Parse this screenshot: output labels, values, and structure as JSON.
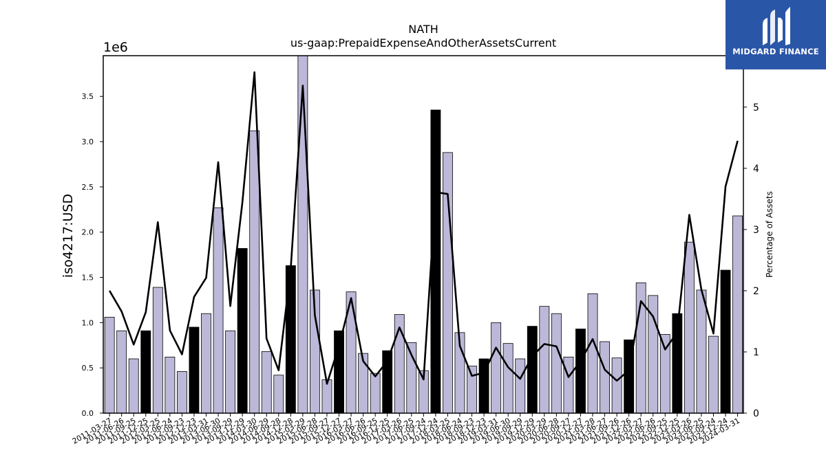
{
  "chart_data": {
    "type": "bar",
    "title": "NATH",
    "subtitle": "us-gaap:PrepaidExpenseAndOtherAssetsCurrent",
    "ylabel": "iso4217:USD",
    "y_offset_label": "1e6",
    "y2label": "Percentage of Assets",
    "ylim": [
      0,
      3.95
    ],
    "y2lim": [
      0,
      5.84
    ],
    "yticks": [
      "0.0",
      "0.5",
      "1.0",
      "1.5",
      "2.0",
      "2.5",
      "3.0",
      "3.5"
    ],
    "y2ticks": [
      "0",
      "1",
      "2",
      "3",
      "4",
      "5"
    ],
    "grid": false,
    "colors": {
      "bar": "#bcb8d8",
      "bar_highlight": "#000000",
      "line": "#000000"
    },
    "categories": [
      "2011-03-27",
      "2011-06-26",
      "2011-09-25",
      "2011-12-25",
      "2012-03-25",
      "2012-06-24",
      "2012-09-23",
      "2012-12-23",
      "2013-03-31",
      "2013-06-30",
      "2013-09-29",
      "2013-12-29",
      "2014-03-30",
      "2014-06-29",
      "2014-09-28",
      "2014-12-28",
      "2015-03-29",
      "2015-06-28",
      "2015-09-27",
      "2015-12-27",
      "2016-03-27",
      "2016-06-26",
      "2016-09-25",
      "2016-12-25",
      "2017-03-26",
      "2017-06-25",
      "2017-09-24",
      "2017-12-24",
      "2018-03-25",
      "2018-06-24",
      "2018-09-23",
      "2018-12-23",
      "2019-03-31",
      "2019-06-30",
      "2019-09-29",
      "2019-12-29",
      "2020-03-29",
      "2020-06-28",
      "2020-09-27",
      "2020-12-27",
      "2021-03-28",
      "2021-06-27",
      "2021-09-26",
      "2021-12-26",
      "2022-03-27",
      "2022-06-26",
      "2022-09-25",
      "2022-12-25",
      "2023-03-26",
      "2023-06-25",
      "2023-09-24",
      "2023-12-24",
      "2024-03-31"
    ],
    "series": [
      {
        "type": "bar",
        "axis": "left",
        "values": [
          1.06,
          0.91,
          0.6,
          0.91,
          1.39,
          0.62,
          0.46,
          0.95,
          1.1,
          2.27,
          0.91,
          1.82,
          3.12,
          0.68,
          0.42,
          1.63,
          3.95,
          1.36,
          0.37,
          0.91,
          1.34,
          0.66,
          0.44,
          0.69,
          1.09,
          0.78,
          0.47,
          3.35,
          2.88,
          0.89,
          0.52,
          0.6,
          1.0,
          0.77,
          0.6,
          0.96,
          1.18,
          1.1,
          0.62,
          0.93,
          1.32,
          0.79,
          0.61,
          0.81,
          1.44,
          1.3,
          0.87,
          1.1,
          1.89,
          1.36,
          0.85,
          1.58,
          2.18
        ],
        "highlight": [
          3,
          7,
          11,
          15,
          19,
          23,
          27,
          31,
          35,
          39,
          43,
          47,
          51
        ]
      },
      {
        "type": "line",
        "axis": "right",
        "values": [
          2.0,
          1.66,
          1.12,
          1.65,
          3.12,
          1.35,
          0.96,
          1.9,
          2.21,
          4.1,
          1.75,
          3.44,
          5.57,
          1.22,
          0.7,
          2.35,
          5.35,
          1.6,
          0.48,
          1.1,
          1.88,
          0.85,
          0.6,
          0.85,
          1.4,
          0.95,
          0.55,
          3.61,
          3.58,
          1.1,
          0.61,
          0.66,
          1.07,
          0.75,
          0.56,
          0.93,
          1.13,
          1.09,
          0.59,
          0.85,
          1.21,
          0.71,
          0.53,
          0.7,
          1.83,
          1.58,
          1.04,
          1.32,
          3.24,
          2.02,
          1.3,
          3.7,
          4.45
        ]
      }
    ]
  },
  "branding": {
    "name": "MIDGARD FINANCE",
    "icon": "midgard-logo-icon"
  }
}
